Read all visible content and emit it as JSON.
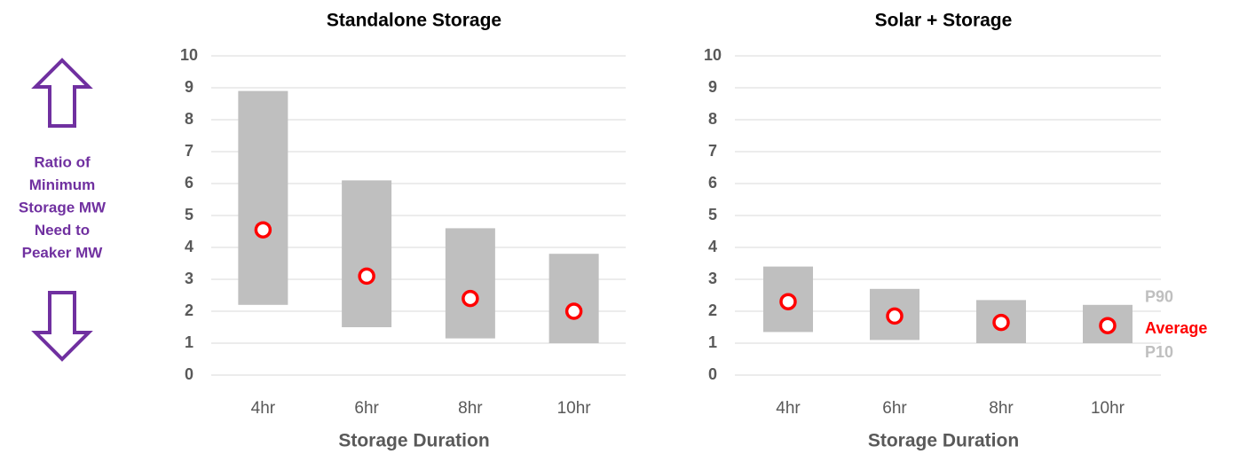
{
  "y_axis_label": [
    "Ratio of",
    "Minimum",
    "Storage MW",
    "Need to",
    "Peaker MW"
  ],
  "chart_data": [
    {
      "type": "range",
      "title": "Standalone Storage",
      "x_label": "Storage Duration",
      "categories": [
        "4hr",
        "6hr",
        "8hr",
        "10hr"
      ],
      "series": [
        {
          "color": "#bfbfbf",
          "values": [
            2.2,
            1.5,
            1.15,
            1.0
          ]
        },
        {
          "color": "#bfbfbf",
          "values": [
            8.9,
            6.1,
            4.6,
            3.8
          ]
        },
        {
          "color": "#ff0000",
          "values": [
            4.55,
            3.1,
            2.4,
            2.0
          ]
        }
      ],
      "ylim": [
        0,
        10
      ],
      "yticks": [
        0,
        1,
        2,
        3,
        4,
        5,
        6,
        7,
        8,
        9,
        10
      ],
      "grid": true
    },
    {
      "type": "range",
      "title": "Solar + Storage",
      "x_label": "Storage Duration",
      "categories": [
        "4hr",
        "6hr",
        "8hr",
        "10hr"
      ],
      "series": [
        {
          "name": "P10",
          "color": "#bfbfbf",
          "values": [
            1.35,
            1.1,
            1.0,
            1.0
          ]
        },
        {
          "name": "P90",
          "color": "#bfbfbf",
          "values": [
            3.4,
            2.7,
            2.35,
            2.2
          ]
        },
        {
          "name": "Average",
          "color": "#ff0000",
          "values": [
            2.3,
            1.85,
            1.65,
            1.55
          ]
        }
      ],
      "ylim": [
        0,
        10
      ],
      "yticks": [
        0,
        1,
        2,
        3,
        4,
        5,
        6,
        7,
        8,
        9,
        10
      ],
      "grid": true,
      "legend": "right"
    }
  ]
}
